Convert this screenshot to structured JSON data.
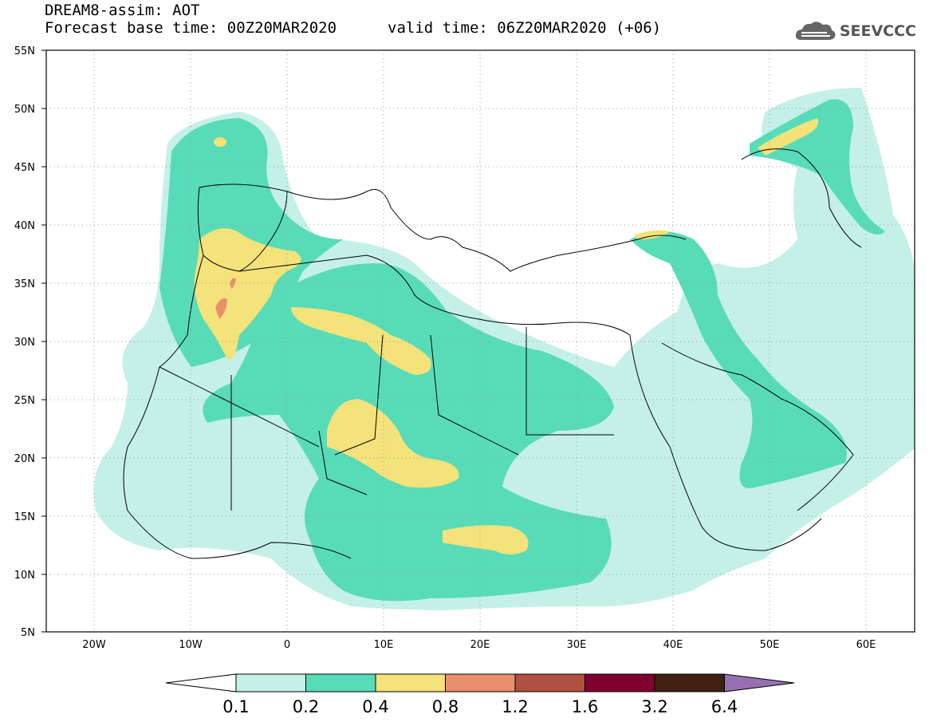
{
  "header": {
    "title": "DREAM8-assim: AOT",
    "base_time": "Forecast base time: 00Z20MAR2020",
    "valid_time": "valid time: 06Z20MAR2020 (+06)"
  },
  "logo": {
    "text": "SEEVCCC",
    "icon": "cloud-icon"
  },
  "map": {
    "lat_labels": [
      "55N",
      "50N",
      "45N",
      "40N",
      "35N",
      "30N",
      "25N",
      "20N",
      "15N",
      "10N",
      "5N"
    ],
    "lon_labels": [
      "20W",
      "10W",
      "0",
      "10E",
      "20E",
      "30E",
      "40E",
      "50E",
      "60E"
    ],
    "lat_range": [
      5,
      55
    ],
    "lon_range": [
      -25,
      65
    ],
    "grid": "dotted"
  },
  "colorbar": {
    "labels": [
      "0.1",
      "0.2",
      "0.4",
      "0.8",
      "1.2",
      "1.6",
      "3.2",
      "6.4"
    ],
    "colors": [
      "#c4f0e8",
      "#58dcb8",
      "#f4e27a",
      "#e8906a",
      "#b05040",
      "#800030",
      "#402010",
      "#9870b0"
    ],
    "low_color": "#ffffff",
    "high_color": "#9870b0"
  },
  "palette": {
    "c1": "#c4f0e8",
    "c2": "#58dcb8",
    "c3": "#f4e27a",
    "c4": "#e8906a",
    "border": "#000000"
  }
}
